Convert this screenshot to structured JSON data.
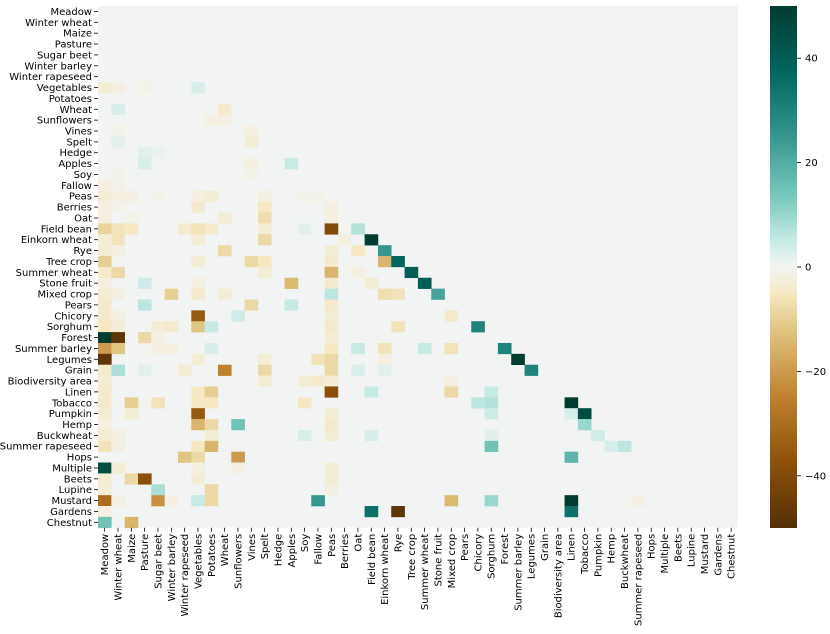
{
  "chart_data": {
    "type": "heatmap",
    "title": "",
    "xlabel": "",
    "ylabel": "",
    "labels": [
      "Meadow",
      "Winter wheat",
      "Maize",
      "Pasture",
      "Sugar beet",
      "Winter barley",
      "Winter rapeseed",
      "Vegetables",
      "Potatoes",
      "Wheat",
      "Sunflowers",
      "Vines",
      "Spelt",
      "Hedge",
      "Apples",
      "Soy",
      "Fallow",
      "Peas",
      "Berries",
      "Oat",
      "Field bean",
      "Einkorn wheat",
      "Rye",
      "Tree crop",
      "Summer wheat",
      "Stone fruit",
      "Mixed crop",
      "Pears",
      "Chicory",
      "Sorghum",
      "Forest",
      "Summer barley",
      "Legumes",
      "Grain",
      "Biodiversity area",
      "Linen",
      "Tobacco",
      "Pumpkin",
      "Hemp",
      "Buckwheat",
      "Summer rapeseed",
      "Hops",
      "Multiple",
      "Beets",
      "Lupine",
      "Mustard",
      "Gardens",
      "Chestnut"
    ],
    "mask": "upper triangle (col >= row) not drawn",
    "zero_color": "#f2f4f3",
    "colormap": "BrBG",
    "colorbar": {
      "min": -50,
      "max": 50,
      "ticks": [
        "40",
        "20",
        "0",
        "−20",
        "−40"
      ],
      "tick_values": [
        40,
        20,
        0,
        -20,
        -40
      ]
    },
    "cells": [
      [
        "Vegetables",
        "Meadow",
        -3
      ],
      [
        "Vegetables",
        "Winter wheat",
        -2
      ],
      [
        "Vegetables",
        "Pasture",
        -1
      ],
      [
        "Vegetables",
        "Vegetables",
        3
      ],
      [
        "Wheat",
        "Winter wheat",
        3
      ],
      [
        "Wheat",
        "Wheat",
        -4
      ],
      [
        "Sunflowers",
        "Potatoes",
        -2
      ],
      [
        "Sunflowers",
        "Wheat",
        -2
      ],
      [
        "Vines",
        "Winter wheat",
        -1
      ],
      [
        "Vines",
        "Vines",
        -2
      ],
      [
        "Spelt",
        "Winter wheat",
        2
      ],
      [
        "Spelt",
        "Vines",
        -3
      ],
      [
        "Hedge",
        "Pasture",
        2
      ],
      [
        "Hedge",
        "Sugar beet",
        1
      ],
      [
        "Apples",
        "Pasture",
        3
      ],
      [
        "Apples",
        "Vines",
        -2
      ],
      [
        "Apples",
        "Apples",
        5
      ],
      [
        "Soy",
        "Winter wheat",
        -1
      ],
      [
        "Soy",
        "Vines",
        -1
      ],
      [
        "Fallow",
        "Meadow",
        -2
      ],
      [
        "Fallow",
        "Winter wheat",
        -1
      ],
      [
        "Peas",
        "Meadow",
        -3
      ],
      [
        "Peas",
        "Winter wheat",
        -2
      ],
      [
        "Peas",
        "Maize",
        -2
      ],
      [
        "Peas",
        "Sugar beet",
        -1
      ],
      [
        "Peas",
        "Vegetables",
        -2
      ],
      [
        "Peas",
        "Potatoes",
        -3
      ],
      [
        "Peas",
        "Spelt",
        -2
      ],
      [
        "Peas",
        "Soy",
        -1
      ],
      [
        "Peas",
        "Fallow",
        -1
      ],
      [
        "Berries",
        "Meadow",
        -2
      ],
      [
        "Berries",
        "Winter wheat",
        -1
      ],
      [
        "Berries",
        "Vegetables",
        -4
      ],
      [
        "Berries",
        "Spelt",
        -5
      ],
      [
        "Berries",
        "Peas",
        -2
      ],
      [
        "Oat",
        "Meadow",
        -2
      ],
      [
        "Oat",
        "Maize",
        -1
      ],
      [
        "Oat",
        "Spelt",
        -7
      ],
      [
        "Oat",
        "Wheat",
        -3
      ],
      [
        "Oat",
        "Peas",
        -2
      ],
      [
        "Field bean",
        "Meadow",
        -9
      ],
      [
        "Field bean",
        "Winter wheat",
        -6
      ],
      [
        "Field bean",
        "Maize",
        -5
      ],
      [
        "Field bean",
        "Winter rapeseed",
        -4
      ],
      [
        "Field bean",
        "Vegetables",
        -6
      ],
      [
        "Field bean",
        "Potatoes",
        -4
      ],
      [
        "Field bean",
        "Spelt",
        -3
      ],
      [
        "Field bean",
        "Peas",
        -40
      ],
      [
        "Field bean",
        "Oat",
        7
      ],
      [
        "Field bean",
        "Soy",
        2
      ],
      [
        "Einkorn wheat",
        "Meadow",
        -3
      ],
      [
        "Einkorn wheat",
        "Winter wheat",
        -6
      ],
      [
        "Einkorn wheat",
        "Vegetables",
        -3
      ],
      [
        "Einkorn wheat",
        "Spelt",
        -8
      ],
      [
        "Einkorn wheat",
        "Field bean",
        50
      ],
      [
        "Einkorn wheat",
        "Berries",
        -2
      ],
      [
        "Rye",
        "Meadow",
        -3
      ],
      [
        "Rye",
        "Winter wheat",
        -2
      ],
      [
        "Rye",
        "Wheat",
        -8
      ],
      [
        "Rye",
        "Peas",
        -3
      ],
      [
        "Rye",
        "Oat",
        -5
      ],
      [
        "Rye",
        "Einkorn wheat",
        25
      ],
      [
        "Tree crop",
        "Meadow",
        -10
      ],
      [
        "Tree crop",
        "Vegetables",
        -3
      ],
      [
        "Tree crop",
        "Vines",
        -8
      ],
      [
        "Tree crop",
        "Spelt",
        -5
      ],
      [
        "Tree crop",
        "Peas",
        -4
      ],
      [
        "Tree crop",
        "Einkorn wheat",
        -15
      ],
      [
        "Tree crop",
        "Rye",
        38
      ],
      [
        "Summer wheat",
        "Meadow",
        -4
      ],
      [
        "Summer wheat",
        "Winter wheat",
        -8
      ],
      [
        "Summer wheat",
        "Spelt",
        -3
      ],
      [
        "Summer wheat",
        "Peas",
        -15
      ],
      [
        "Summer wheat",
        "Oat",
        -2
      ],
      [
        "Summer wheat",
        "Tree crop",
        40
      ],
      [
        "Stone fruit",
        "Meadow",
        -2
      ],
      [
        "Stone fruit",
        "Pasture",
        4
      ],
      [
        "Stone fruit",
        "Vegetables",
        -2
      ],
      [
        "Stone fruit",
        "Apples",
        -14
      ],
      [
        "Stone fruit",
        "Peas",
        -4
      ],
      [
        "Stone fruit",
        "Field bean",
        -3
      ],
      [
        "Stone fruit",
        "Summer wheat",
        40
      ],
      [
        "Mixed crop",
        "Meadow",
        -3
      ],
      [
        "Mixed crop",
        "Winter wheat",
        -2
      ],
      [
        "Mixed crop",
        "Winter barley",
        -10
      ],
      [
        "Mixed crop",
        "Vegetables",
        -4
      ],
      [
        "Mixed crop",
        "Wheat",
        -3
      ],
      [
        "Mixed crop",
        "Peas",
        6
      ],
      [
        "Mixed crop",
        "Einkorn wheat",
        -7
      ],
      [
        "Mixed crop",
        "Rye",
        -6
      ],
      [
        "Mixed crop",
        "Stone fruit",
        22
      ],
      [
        "Pears",
        "Meadow",
        -4
      ],
      [
        "Pears",
        "Pasture",
        6
      ],
      [
        "Pears",
        "Vines",
        -8
      ],
      [
        "Pears",
        "Apples",
        5
      ],
      [
        "Pears",
        "Peas",
        -4
      ],
      [
        "Chicory",
        "Meadow",
        -4
      ],
      [
        "Chicory",
        "Winter wheat",
        -2
      ],
      [
        "Chicory",
        "Vegetables",
        -35
      ],
      [
        "Chicory",
        "Sunflowers",
        4
      ],
      [
        "Chicory",
        "Peas",
        -3
      ],
      [
        "Chicory",
        "Mixed crop",
        -4
      ],
      [
        "Sorghum",
        "Meadow",
        -5
      ],
      [
        "Sorghum",
        "Winter wheat",
        -3
      ],
      [
        "Sorghum",
        "Sugar beet",
        -3
      ],
      [
        "Sorghum",
        "Winter barley",
        -4
      ],
      [
        "Sorghum",
        "Vegetables",
        -12
      ],
      [
        "Sorghum",
        "Potatoes",
        5
      ],
      [
        "Sorghum",
        "Peas",
        -4
      ],
      [
        "Sorghum",
        "Rye",
        -6
      ],
      [
        "Sorghum",
        "Chicory",
        30
      ],
      [
        "Forest",
        "Meadow",
        50
      ],
      [
        "Forest",
        "Winter wheat",
        -48
      ],
      [
        "Forest",
        "Pasture",
        -8
      ],
      [
        "Forest",
        "Sugar beet",
        -2
      ],
      [
        "Forest",
        "Peas",
        -3
      ],
      [
        "Summer barley",
        "Meadow",
        -20
      ],
      [
        "Summer barley",
        "Winter wheat",
        -12
      ],
      [
        "Summer barley",
        "Sugar beet",
        -2
      ],
      [
        "Summer barley",
        "Winter barley",
        -2
      ],
      [
        "Summer barley",
        "Potatoes",
        3
      ],
      [
        "Summer barley",
        "Peas",
        -5
      ],
      [
        "Summer barley",
        "Oat",
        5
      ],
      [
        "Summer barley",
        "Einkorn wheat",
        -6
      ],
      [
        "Summer barley",
        "Summer wheat",
        5
      ],
      [
        "Summer barley",
        "Mixed crop",
        -6
      ],
      [
        "Summer barley",
        "Forest",
        30
      ],
      [
        "Legumes",
        "Meadow",
        -48
      ],
      [
        "Legumes",
        "Vegetables",
        -3
      ],
      [
        "Legumes",
        "Spelt",
        -3
      ],
      [
        "Legumes",
        "Fallow",
        -6
      ],
      [
        "Legumes",
        "Peas",
        -8
      ],
      [
        "Legumes",
        "Einkorn wheat",
        -2
      ],
      [
        "Legumes",
        "Summer barley",
        50
      ],
      [
        "Grain",
        "Meadow",
        -4
      ],
      [
        "Grain",
        "Winter wheat",
        8
      ],
      [
        "Grain",
        "Pasture",
        2
      ],
      [
        "Grain",
        "Winter rapeseed",
        -3
      ],
      [
        "Grain",
        "Wheat",
        -25
      ],
      [
        "Grain",
        "Spelt",
        -8
      ],
      [
        "Grain",
        "Peas",
        -8
      ],
      [
        "Grain",
        "Oat",
        3
      ],
      [
        "Grain",
        "Einkorn wheat",
        2
      ],
      [
        "Grain",
        "Legumes",
        30
      ],
      [
        "Biodiversity area",
        "Meadow",
        -3
      ],
      [
        "Biodiversity area",
        "Spelt",
        -3
      ],
      [
        "Biodiversity area",
        "Soy",
        -3
      ],
      [
        "Biodiversity area",
        "Fallow",
        -4
      ],
      [
        "Biodiversity area",
        "Peas",
        -3
      ],
      [
        "Biodiversity area",
        "Mixed crop",
        -2
      ],
      [
        "Linen",
        "Meadow",
        -4
      ],
      [
        "Linen",
        "Vegetables",
        -5
      ],
      [
        "Linen",
        "Potatoes",
        -10
      ],
      [
        "Linen",
        "Peas",
        -38
      ],
      [
        "Linen",
        "Field bean",
        5
      ],
      [
        "Linen",
        "Mixed crop",
        -8
      ],
      [
        "Linen",
        "Sorghum",
        5
      ],
      [
        "Tobacco",
        "Meadow",
        -4
      ],
      [
        "Tobacco",
        "Maize",
        -10
      ],
      [
        "Tobacco",
        "Sugar beet",
        -6
      ],
      [
        "Tobacco",
        "Vegetables",
        -5
      ],
      [
        "Tobacco",
        "Potatoes",
        -5
      ],
      [
        "Tobacco",
        "Soy",
        -5
      ],
      [
        "Tobacco",
        "Chicory",
        6
      ],
      [
        "Tobacco",
        "Sorghum",
        7
      ],
      [
        "Tobacco",
        "Linen",
        50
      ],
      [
        "Pumpkin",
        "Meadow",
        -3
      ],
      [
        "Pumpkin",
        "Maize",
        -3
      ],
      [
        "Pumpkin",
        "Vegetables",
        -35
      ],
      [
        "Pumpkin",
        "Peas",
        -3
      ],
      [
        "Pumpkin",
        "Sorghum",
        4
      ],
      [
        "Pumpkin",
        "Linen",
        3
      ],
      [
        "Pumpkin",
        "Tobacco",
        45
      ],
      [
        "Hemp",
        "Meadow",
        -2
      ],
      [
        "Hemp",
        "Vegetables",
        -15
      ],
      [
        "Hemp",
        "Potatoes",
        -8
      ],
      [
        "Hemp",
        "Sunflowers",
        15
      ],
      [
        "Hemp",
        "Peas",
        -4
      ],
      [
        "Hemp",
        "Tobacco",
        10
      ],
      [
        "Buckwheat",
        "Meadow",
        -3
      ],
      [
        "Buckwheat",
        "Winter wheat",
        -2
      ],
      [
        "Buckwheat",
        "Potatoes",
        -3
      ],
      [
        "Buckwheat",
        "Soy",
        3
      ],
      [
        "Buckwheat",
        "Peas",
        -3
      ],
      [
        "Buckwheat",
        "Field bean",
        3
      ],
      [
        "Buckwheat",
        "Sorghum",
        2
      ],
      [
        "Buckwheat",
        "Pumpkin",
        4
      ],
      [
        "Summer rapeseed",
        "Meadow",
        -6
      ],
      [
        "Summer rapeseed",
        "Winter wheat",
        -2
      ],
      [
        "Summer rapeseed",
        "Vegetables",
        -5
      ],
      [
        "Summer rapeseed",
        "Potatoes",
        -15
      ],
      [
        "Summer rapeseed",
        "Hemp",
        3
      ],
      [
        "Summer rapeseed",
        "Sorghum",
        15
      ],
      [
        "Summer rapeseed",
        "Buckwheat",
        6
      ],
      [
        "Hops",
        "Winter rapeseed",
        -12
      ],
      [
        "Hops",
        "Vegetables",
        -8
      ],
      [
        "Hops",
        "Sunflowers",
        -20
      ],
      [
        "Hops",
        "Linen",
        18
      ],
      [
        "Multiple",
        "Meadow",
        45
      ],
      [
        "Multiple",
        "Winter wheat",
        -3
      ],
      [
        "Multiple",
        "Vegetables",
        -2
      ],
      [
        "Multiple",
        "Sunflowers",
        -2
      ],
      [
        "Multiple",
        "Peas",
        -3
      ],
      [
        "Beets",
        "Meadow",
        -3
      ],
      [
        "Beets",
        "Maize",
        -8
      ],
      [
        "Beets",
        "Pasture",
        -38
      ],
      [
        "Beets",
        "Vegetables",
        -3
      ],
      [
        "Beets",
        "Peas",
        -3
      ],
      [
        "Lupine",
        "Meadow",
        -3
      ],
      [
        "Lupine",
        "Sugar beet",
        8
      ],
      [
        "Lupine",
        "Potatoes",
        -8
      ],
      [
        "Lupine",
        "Peas",
        -2
      ],
      [
        "Mustard",
        "Meadow",
        -30
      ],
      [
        "Mustard",
        "Winter wheat",
        -2
      ],
      [
        "Mustard",
        "Sugar beet",
        -22
      ],
      [
        "Mustard",
        "Winter barley",
        -2
      ],
      [
        "Mustard",
        "Vegetables",
        5
      ],
      [
        "Mustard",
        "Potatoes",
        -8
      ],
      [
        "Mustard",
        "Fallow",
        25
      ],
      [
        "Mustard",
        "Mixed crop",
        -14
      ],
      [
        "Mustard",
        "Sorghum",
        10
      ],
      [
        "Mustard",
        "Linen",
        50
      ],
      [
        "Mustard",
        "Summer rapeseed",
        -2
      ],
      [
        "Gardens",
        "Meadow",
        -2
      ],
      [
        "Gardens",
        "Field bean",
        35
      ],
      [
        "Gardens",
        "Rye",
        -48
      ],
      [
        "Gardens",
        "Linen",
        35
      ],
      [
        "Chestnut",
        "Meadow",
        15
      ],
      [
        "Chestnut",
        "Maize",
        -15
      ]
    ]
  }
}
